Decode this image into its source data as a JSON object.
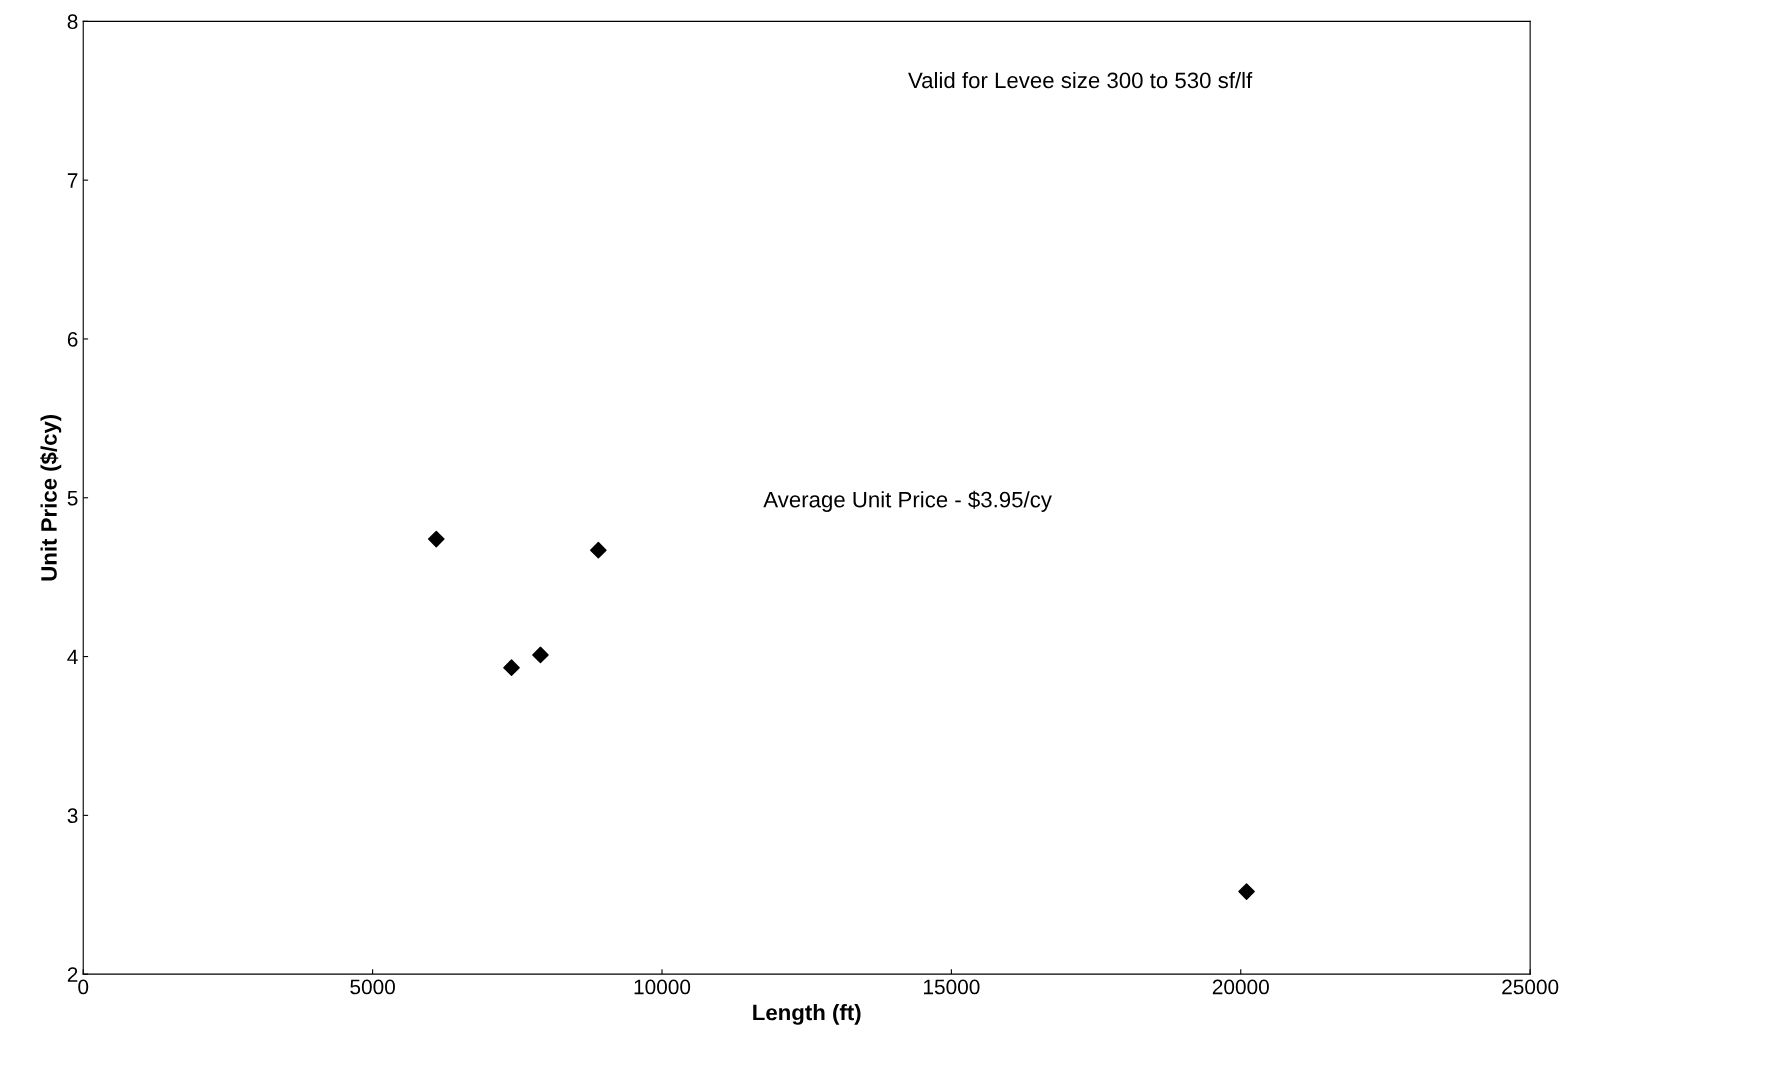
{
  "chart_data": {
    "type": "scatter",
    "xlabel": "Length (ft)",
    "ylabel": "Unit Price ($/cy)",
    "annotations": [
      "Valid for Levee size 300 to 530 sf/lf",
      "Average Unit Price - $3.95/cy"
    ],
    "x": [
      6100,
      7400,
      7900,
      8900,
      20100
    ],
    "series": [
      {
        "color": "#000000",
        "values": [
          4.74,
          3.93,
          4.01,
          4.67,
          2.52
        ]
      }
    ],
    "xlim": [
      0,
      25000
    ],
    "xticks": [
      0,
      5000,
      10000,
      15000,
      20000,
      25000
    ],
    "ylim": [
      2,
      8
    ],
    "yticks": [
      2,
      3,
      4,
      5,
      6,
      7,
      8
    ],
    "marker": "diamond",
    "grid": false,
    "legend": false
  }
}
